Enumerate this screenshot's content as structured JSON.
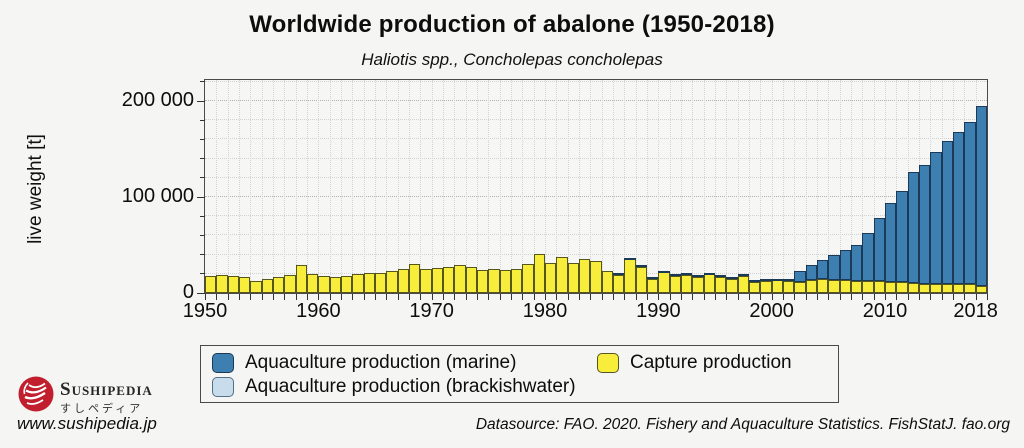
{
  "header": {
    "title": "Worldwide production of abalone (1950-2018)",
    "subtitle": "Haliotis spp., Concholepas concholepas"
  },
  "chart_data": {
    "type": "bar",
    "stacked": true,
    "title": "Worldwide production of abalone (1950-2018)",
    "subtitle": "Haliotis spp., Concholepas concholepas",
    "ylabel": "live weight [t]",
    "ylim": [
      0,
      221875
    ],
    "y_tick_values": [
      0,
      100000,
      200000
    ],
    "y_tick_labels": [
      "0",
      "100 000",
      "200 000"
    ],
    "y_minor_step": 20000,
    "grid": "dotted",
    "legend_position": "bottom",
    "x_tick_years": [
      1950,
      1960,
      1970,
      1980,
      1990,
      2000,
      2010,
      2018
    ],
    "years": [
      1950,
      1951,
      1952,
      1953,
      1954,
      1955,
      1956,
      1957,
      1958,
      1959,
      1960,
      1961,
      1962,
      1963,
      1964,
      1965,
      1966,
      1967,
      1968,
      1969,
      1970,
      1971,
      1972,
      1973,
      1974,
      1975,
      1976,
      1977,
      1978,
      1979,
      1980,
      1981,
      1982,
      1983,
      1984,
      1985,
      1986,
      1987,
      1988,
      1989,
      1990,
      1991,
      1992,
      1993,
      1994,
      1995,
      1996,
      1997,
      1998,
      1999,
      2000,
      2001,
      2002,
      2003,
      2004,
      2005,
      2006,
      2007,
      2008,
      2009,
      2010,
      2011,
      2012,
      2013,
      2014,
      2015,
      2016,
      2017,
      2018
    ],
    "series": [
      {
        "name": "Capture production",
        "color": "#F9ED3B",
        "border_color": "#55551E",
        "values": [
          18000,
          19000,
          17500,
          17000,
          12500,
          14500,
          17000,
          18500,
          29500,
          19500,
          18000,
          17000,
          18000,
          19500,
          20500,
          21000,
          23000,
          25500,
          30000,
          25500,
          26500,
          27500,
          29500,
          27500,
          24000,
          25500,
          23500,
          25500,
          30500,
          40500,
          31000,
          37000,
          31000,
          35000,
          33000,
          22500,
          19000,
          35500,
          27500,
          15000,
          21500,
          18000,
          19000,
          17000,
          19500,
          17000,
          14500,
          17500,
          11500,
          12500,
          13500,
          12500,
          11500,
          14000,
          15000,
          14000,
          13500,
          13000,
          12500,
          12000,
          11500,
          11000,
          10000,
          9500,
          9500,
          9000,
          9000,
          9000,
          7500
        ]
      },
      {
        "name": "Aquaculture production (marine)",
        "color": "#3E7FB1",
        "border_color": "#1B3A57",
        "values": [
          0,
          0,
          0,
          0,
          0,
          0,
          0,
          0,
          0,
          0,
          0,
          0,
          0,
          0,
          0,
          0,
          0,
          0,
          0,
          0,
          0,
          0,
          0,
          0,
          0,
          0,
          0,
          0,
          0,
          0,
          0,
          0,
          0,
          0,
          0,
          0,
          500,
          800,
          800,
          600,
          600,
          700,
          900,
          1000,
          1300,
          1500,
          2000,
          2200,
          1800,
          1800,
          1600,
          2500,
          11000,
          15000,
          19500,
          25500,
          31500,
          37000,
          50500,
          66000,
          82000,
          95000,
          116000,
          124000,
          137000,
          149000,
          159000,
          169000,
          187500
        ]
      },
      {
        "name": "Aquaculture production (brackishwater)",
        "color": "#C9DCEB",
        "border_color": "#51708C",
        "values": [
          0,
          0,
          0,
          0,
          0,
          0,
          0,
          0,
          0,
          0,
          0,
          0,
          0,
          0,
          0,
          0,
          0,
          0,
          0,
          0,
          0,
          0,
          0,
          0,
          0,
          0,
          0,
          0,
          0,
          0,
          0,
          0,
          0,
          0,
          0,
          0,
          0,
          0,
          0,
          0,
          0,
          0,
          0,
          0,
          0,
          0,
          0,
          0,
          0,
          0,
          0,
          0,
          0,
          0,
          0,
          0,
          0,
          0,
          0,
          0,
          0,
          0,
          0,
          0,
          0,
          0,
          0,
          0,
          0
        ]
      }
    ]
  },
  "legend": {
    "items": [
      {
        "label": "Aquaculture production (marine)",
        "series": "Aquaculture production (marine)"
      },
      {
        "label": "Capture production",
        "series": "Capture production"
      },
      {
        "label": "Aquaculture production (brackishwater)",
        "series": "Aquaculture production (brackishwater)"
      }
    ]
  },
  "footer": {
    "brand_name": "Sushipedia",
    "brand_name_jp": "すしペディア",
    "site_url": "www.sushipedia.jp",
    "datasource": "Datasource: FAO. 2020. Fishery and Aquaculture Statistics. FishStatJ. fao.org"
  }
}
